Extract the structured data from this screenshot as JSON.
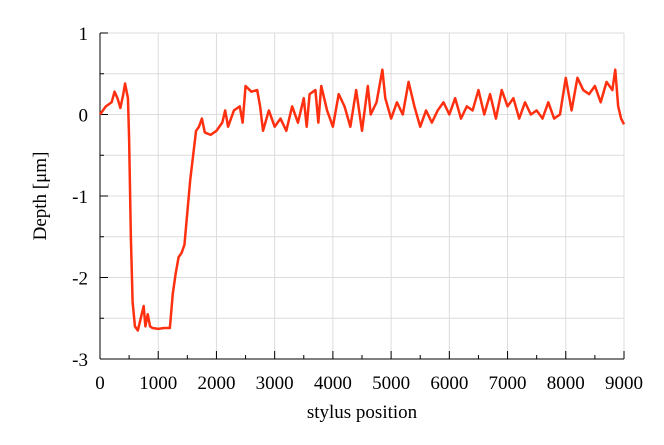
{
  "chart_data": {
    "type": "line",
    "xlabel": "stylus position",
    "ylabel": "Depth [μm]",
    "xlim": [
      0,
      9000
    ],
    "ylim": [
      -3,
      1
    ],
    "xticks": [
      0,
      1000,
      2000,
      3000,
      4000,
      5000,
      6000,
      7000,
      8000,
      9000
    ],
    "yticks": [
      -3,
      -2,
      -1,
      0,
      1
    ],
    "yminor": [
      -2.5,
      -1.5,
      -0.5,
      0.5
    ],
    "xminor": [
      500,
      1500,
      2500,
      3500,
      4500,
      5500,
      6500,
      7500,
      8500
    ],
    "grid": true,
    "series": [
      {
        "color": "#ff3010",
        "x": [
          0,
          100,
          200,
          250,
          300,
          350,
          400,
          430,
          480,
          500,
          530,
          560,
          600,
          650,
          700,
          750,
          780,
          820,
          860,
          900,
          1000,
          1100,
          1200,
          1250,
          1300,
          1350,
          1400,
          1450,
          1500,
          1550,
          1600,
          1650,
          1700,
          1750,
          1800,
          1900,
          2000,
          2100,
          2150,
          2200,
          2300,
          2400,
          2450,
          2500,
          2600,
          2700,
          2750,
          2800,
          2900,
          3000,
          3100,
          3200,
          3300,
          3400,
          3500,
          3550,
          3600,
          3700,
          3750,
          3800,
          3900,
          4000,
          4100,
          4200,
          4300,
          4400,
          4500,
          4600,
          4650,
          4750,
          4850,
          4900,
          5000,
          5100,
          5200,
          5300,
          5400,
          5500,
          5600,
          5700,
          5800,
          5900,
          6000,
          6100,
          6200,
          6300,
          6400,
          6500,
          6600,
          6700,
          6800,
          6900,
          7000,
          7100,
          7200,
          7300,
          7400,
          7500,
          7600,
          7700,
          7800,
          7900,
          8000,
          8100,
          8200,
          8300,
          8400,
          8500,
          8600,
          8700,
          8800,
          8850,
          8900,
          8950,
          9000
        ],
        "values": [
          0,
          0.1,
          0.15,
          0.28,
          0.2,
          0.08,
          0.25,
          0.38,
          0.2,
          -0.3,
          -1.5,
          -2.3,
          -2.6,
          -2.65,
          -2.5,
          -2.35,
          -2.6,
          -2.45,
          -2.6,
          -2.62,
          -2.63,
          -2.62,
          -2.62,
          -2.2,
          -1.95,
          -1.75,
          -1.7,
          -1.6,
          -1.2,
          -0.8,
          -0.5,
          -0.2,
          -0.15,
          -0.05,
          -0.22,
          -0.25,
          -0.2,
          -0.1,
          0.05,
          -0.15,
          0.05,
          0.1,
          -0.1,
          0.35,
          0.28,
          0.3,
          0.1,
          -0.2,
          0.05,
          -0.15,
          -0.05,
          -0.2,
          0.1,
          -0.1,
          0.2,
          -0.15,
          0.25,
          0.3,
          -0.1,
          0.35,
          0.05,
          -0.15,
          0.25,
          0.1,
          -0.15,
          0.3,
          -0.2,
          0.35,
          0,
          0.15,
          0.55,
          0.2,
          -0.05,
          0.15,
          0,
          0.4,
          0.1,
          -0.15,
          0.05,
          -0.1,
          0.05,
          0.15,
          0,
          0.2,
          -0.05,
          0.1,
          0.05,
          0.3,
          0,
          0.25,
          -0.05,
          0.3,
          0.1,
          0.2,
          -0.05,
          0.15,
          0,
          0.05,
          -0.05,
          0.15,
          -0.05,
          0,
          0.45,
          0.05,
          0.45,
          0.3,
          0.25,
          0.35,
          0.15,
          0.4,
          0.3,
          0.55,
          0.1,
          -0.05,
          -0.12
        ]
      }
    ]
  }
}
